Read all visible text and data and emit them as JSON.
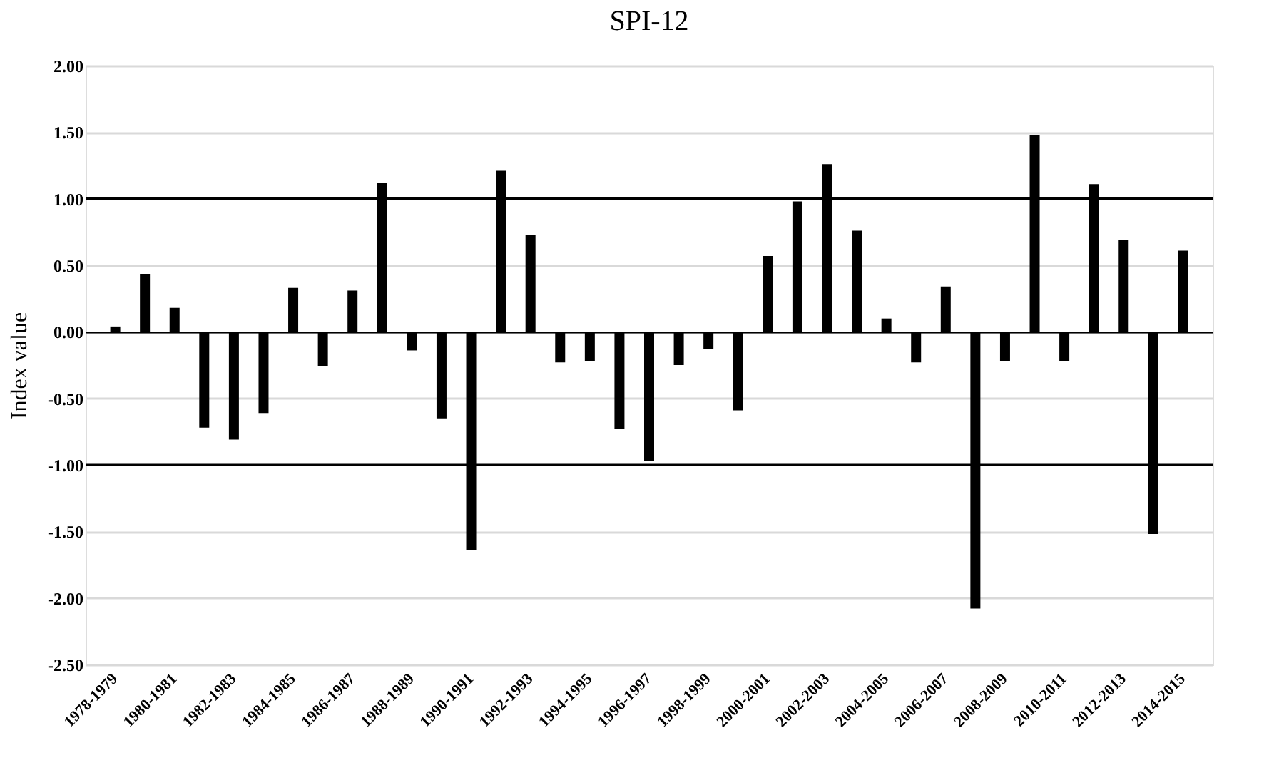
{
  "chart_data": {
    "type": "bar",
    "title": "SPI-12",
    "ylabel": "Index value",
    "categories": [
      "1978-1979",
      null,
      "1980-1981",
      null,
      "1982-1983",
      null,
      "1984-1985",
      null,
      "1986-1987",
      null,
      "1988-1989",
      null,
      "1990-1991",
      null,
      "1992-1993",
      null,
      "1994-1995",
      null,
      "1996-1997",
      null,
      "1998-1999",
      null,
      "2000-2001",
      null,
      "2002-2003",
      null,
      "2004-2005",
      null,
      "2006-2007",
      null,
      "2008-2009",
      null,
      "2010-2011",
      null,
      "2012-2013",
      null,
      "2014-2015"
    ],
    "values": [
      0.04,
      0.43,
      0.18,
      -0.72,
      -0.81,
      -0.61,
      0.33,
      -0.26,
      0.31,
      1.12,
      -0.14,
      -0.65,
      -1.64,
      1.21,
      0.73,
      -0.23,
      -0.22,
      -0.73,
      -0.97,
      -0.25,
      -0.13,
      -0.59,
      0.57,
      0.98,
      1.26,
      0.76,
      0.1,
      -0.23,
      0.34,
      -2.08,
      -0.22,
      1.48,
      -0.22,
      1.11,
      0.69,
      -1.52,
      0.61
    ],
    "color": "#000000",
    "ylim": [
      -2.5,
      2.0
    ],
    "yticks": [
      {
        "value": -2.5,
        "label": "-2.50"
      },
      {
        "value": -2.0,
        "label": "-2.00"
      },
      {
        "value": -1.5,
        "label": "-1.50"
      },
      {
        "value": -1.0,
        "label": "-1.00"
      },
      {
        "value": -0.5,
        "label": "-0.50"
      },
      {
        "value": 0.0,
        "label": "0.00"
      },
      {
        "value": 0.5,
        "label": "0.50"
      },
      {
        "value": 1.0,
        "label": "1.00"
      },
      {
        "value": 1.5,
        "label": "1.50"
      },
      {
        "value": 2.0,
        "label": "2.00"
      }
    ],
    "ref_lines": [
      {
        "axis": "y",
        "value": 1.0,
        "color": "#000000"
      },
      {
        "axis": "y",
        "value": -1.0,
        "color": "#000000"
      }
    ],
    "grid": "y"
  }
}
